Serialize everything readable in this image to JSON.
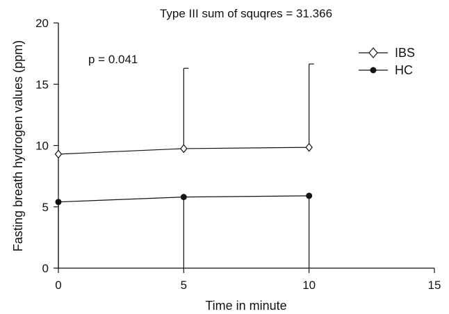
{
  "chart_data": {
    "type": "line",
    "title": "Type III sum of squqres = 31.366",
    "xlabel": "Time in minute",
    "ylabel": "Fasting breath hydrogen values (ppm)",
    "xlim": [
      0,
      15
    ],
    "ylim": [
      0,
      20
    ],
    "xticks": [
      "0",
      "5",
      "10",
      "15"
    ],
    "yticks": [
      "0",
      "5",
      "10",
      "15",
      "20"
    ],
    "x": [
      0,
      5,
      10
    ],
    "series": [
      {
        "name": "IBS",
        "marker": "open-diamond",
        "values": [
          9.3,
          9.75,
          9.85
        ],
        "error_upper": [
          null,
          16.3,
          16.65
        ]
      },
      {
        "name": "HC",
        "marker": "filled-circle",
        "values": [
          5.4,
          5.8,
          5.9
        ],
        "error_lower": [
          0,
          0,
          0
        ]
      }
    ],
    "annotation": "p = 0.041",
    "legend_position": "top-right",
    "grid": false
  }
}
